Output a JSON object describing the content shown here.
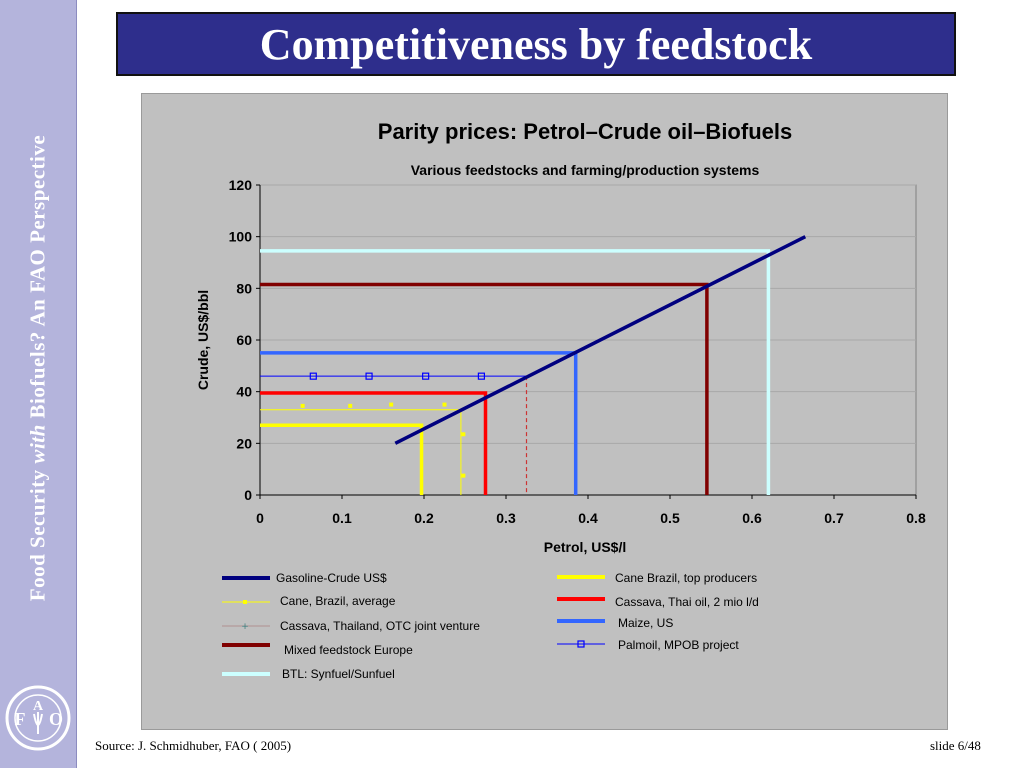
{
  "sidebar": {
    "text_before": "Food  Security  ",
    "text_em": "with",
    "text_after": "  Biofuels?  An FAO  Perspective",
    "logo_letters": [
      "F",
      "A",
      "O"
    ],
    "logo_motto": "FIAT PANIS"
  },
  "slide": {
    "title": "Competitiveness by feedstock",
    "source": "Source: J. Schmidhuber, FAO ( 2005)",
    "page": "slide 6/48"
  },
  "chart_data": {
    "type": "line",
    "title": "Parity prices: Petrol–Crude oil–Biofuels",
    "subtitle": "Various feedstocks and farming/production systems",
    "xlabel": "Petrol, US$/l",
    "ylabel": "Crude, US$/bbl",
    "xlim": [
      0,
      0.8
    ],
    "ylim": [
      0,
      120
    ],
    "xticks": [
      "0",
      "0.1",
      "0.2",
      "0.3",
      "0.4",
      "0.5",
      "0.6",
      "0.7",
      "0.8"
    ],
    "yticks": [
      "0",
      "20",
      "40",
      "60",
      "80",
      "100",
      "120"
    ],
    "grid": true,
    "legend_position": "bottom",
    "series": [
      {
        "name": "Gasoline-Crude US$",
        "kind": "diagonal",
        "color": "#00007f",
        "points": [
          [
            0.165,
            20
          ],
          [
            0.665,
            100
          ]
        ]
      },
      {
        "name": "Cane Brazil, top producers",
        "kind": "parity",
        "color": "#ffff00",
        "crude": 27,
        "petrol": 0.197
      },
      {
        "name": "Cane, Brazil, average",
        "kind": "parity-marker",
        "color": "#ffff00",
        "crude": 33,
        "petrol": 0.245,
        "points": [
          [
            0.052,
            34.5
          ],
          [
            0.11,
            34.5
          ],
          [
            0.16,
            35
          ],
          [
            0.225,
            35
          ],
          [
            0.248,
            23.5
          ],
          [
            0.248,
            7.5
          ]
        ]
      },
      {
        "name": "Cassava, Thai oil, 2 mio l/d",
        "kind": "parity",
        "color": "#ff0000",
        "crude": 39.5,
        "petrol": 0.275
      },
      {
        "name": "Cassava, Thailand, OTC joint venture",
        "kind": "parity-dashed",
        "color": "#cc3333",
        "crude": 46,
        "petrol": 0.325
      },
      {
        "name": "Maize, US",
        "kind": "parity",
        "color": "#3366ff",
        "crude": 55,
        "petrol": 0.385
      },
      {
        "name": "Palmoil, MPOB project",
        "kind": "parity-marker",
        "color": "#0000ff",
        "crude": 46,
        "petrol": 0.325,
        "points": [
          [
            0.065,
            46
          ],
          [
            0.133,
            46
          ],
          [
            0.202,
            46
          ],
          [
            0.27,
            46
          ]
        ]
      },
      {
        "name": "Mixed feedstock Europe",
        "kind": "parity",
        "color": "#800000",
        "crude": 81.5,
        "petrol": 0.545
      },
      {
        "name": "BTL: Synfuel/Sunfuel",
        "kind": "parity",
        "color": "#ccffff",
        "crude": 94.5,
        "petrol": 0.62
      }
    ]
  },
  "legend": {
    "left": [
      "Gasoline-Crude US$",
      "Cane, Brazil, average",
      "Cassava, Thailand, OTC joint venture",
      "Mixed feedstock Europe",
      "BTL: Synfuel/Sunfuel"
    ],
    "right": [
      "Cane Brazil, top producers",
      "Cassava, Thai oil, 2 mio l/d",
      "Maize, US",
      "Palmoil, MPOB project"
    ]
  }
}
